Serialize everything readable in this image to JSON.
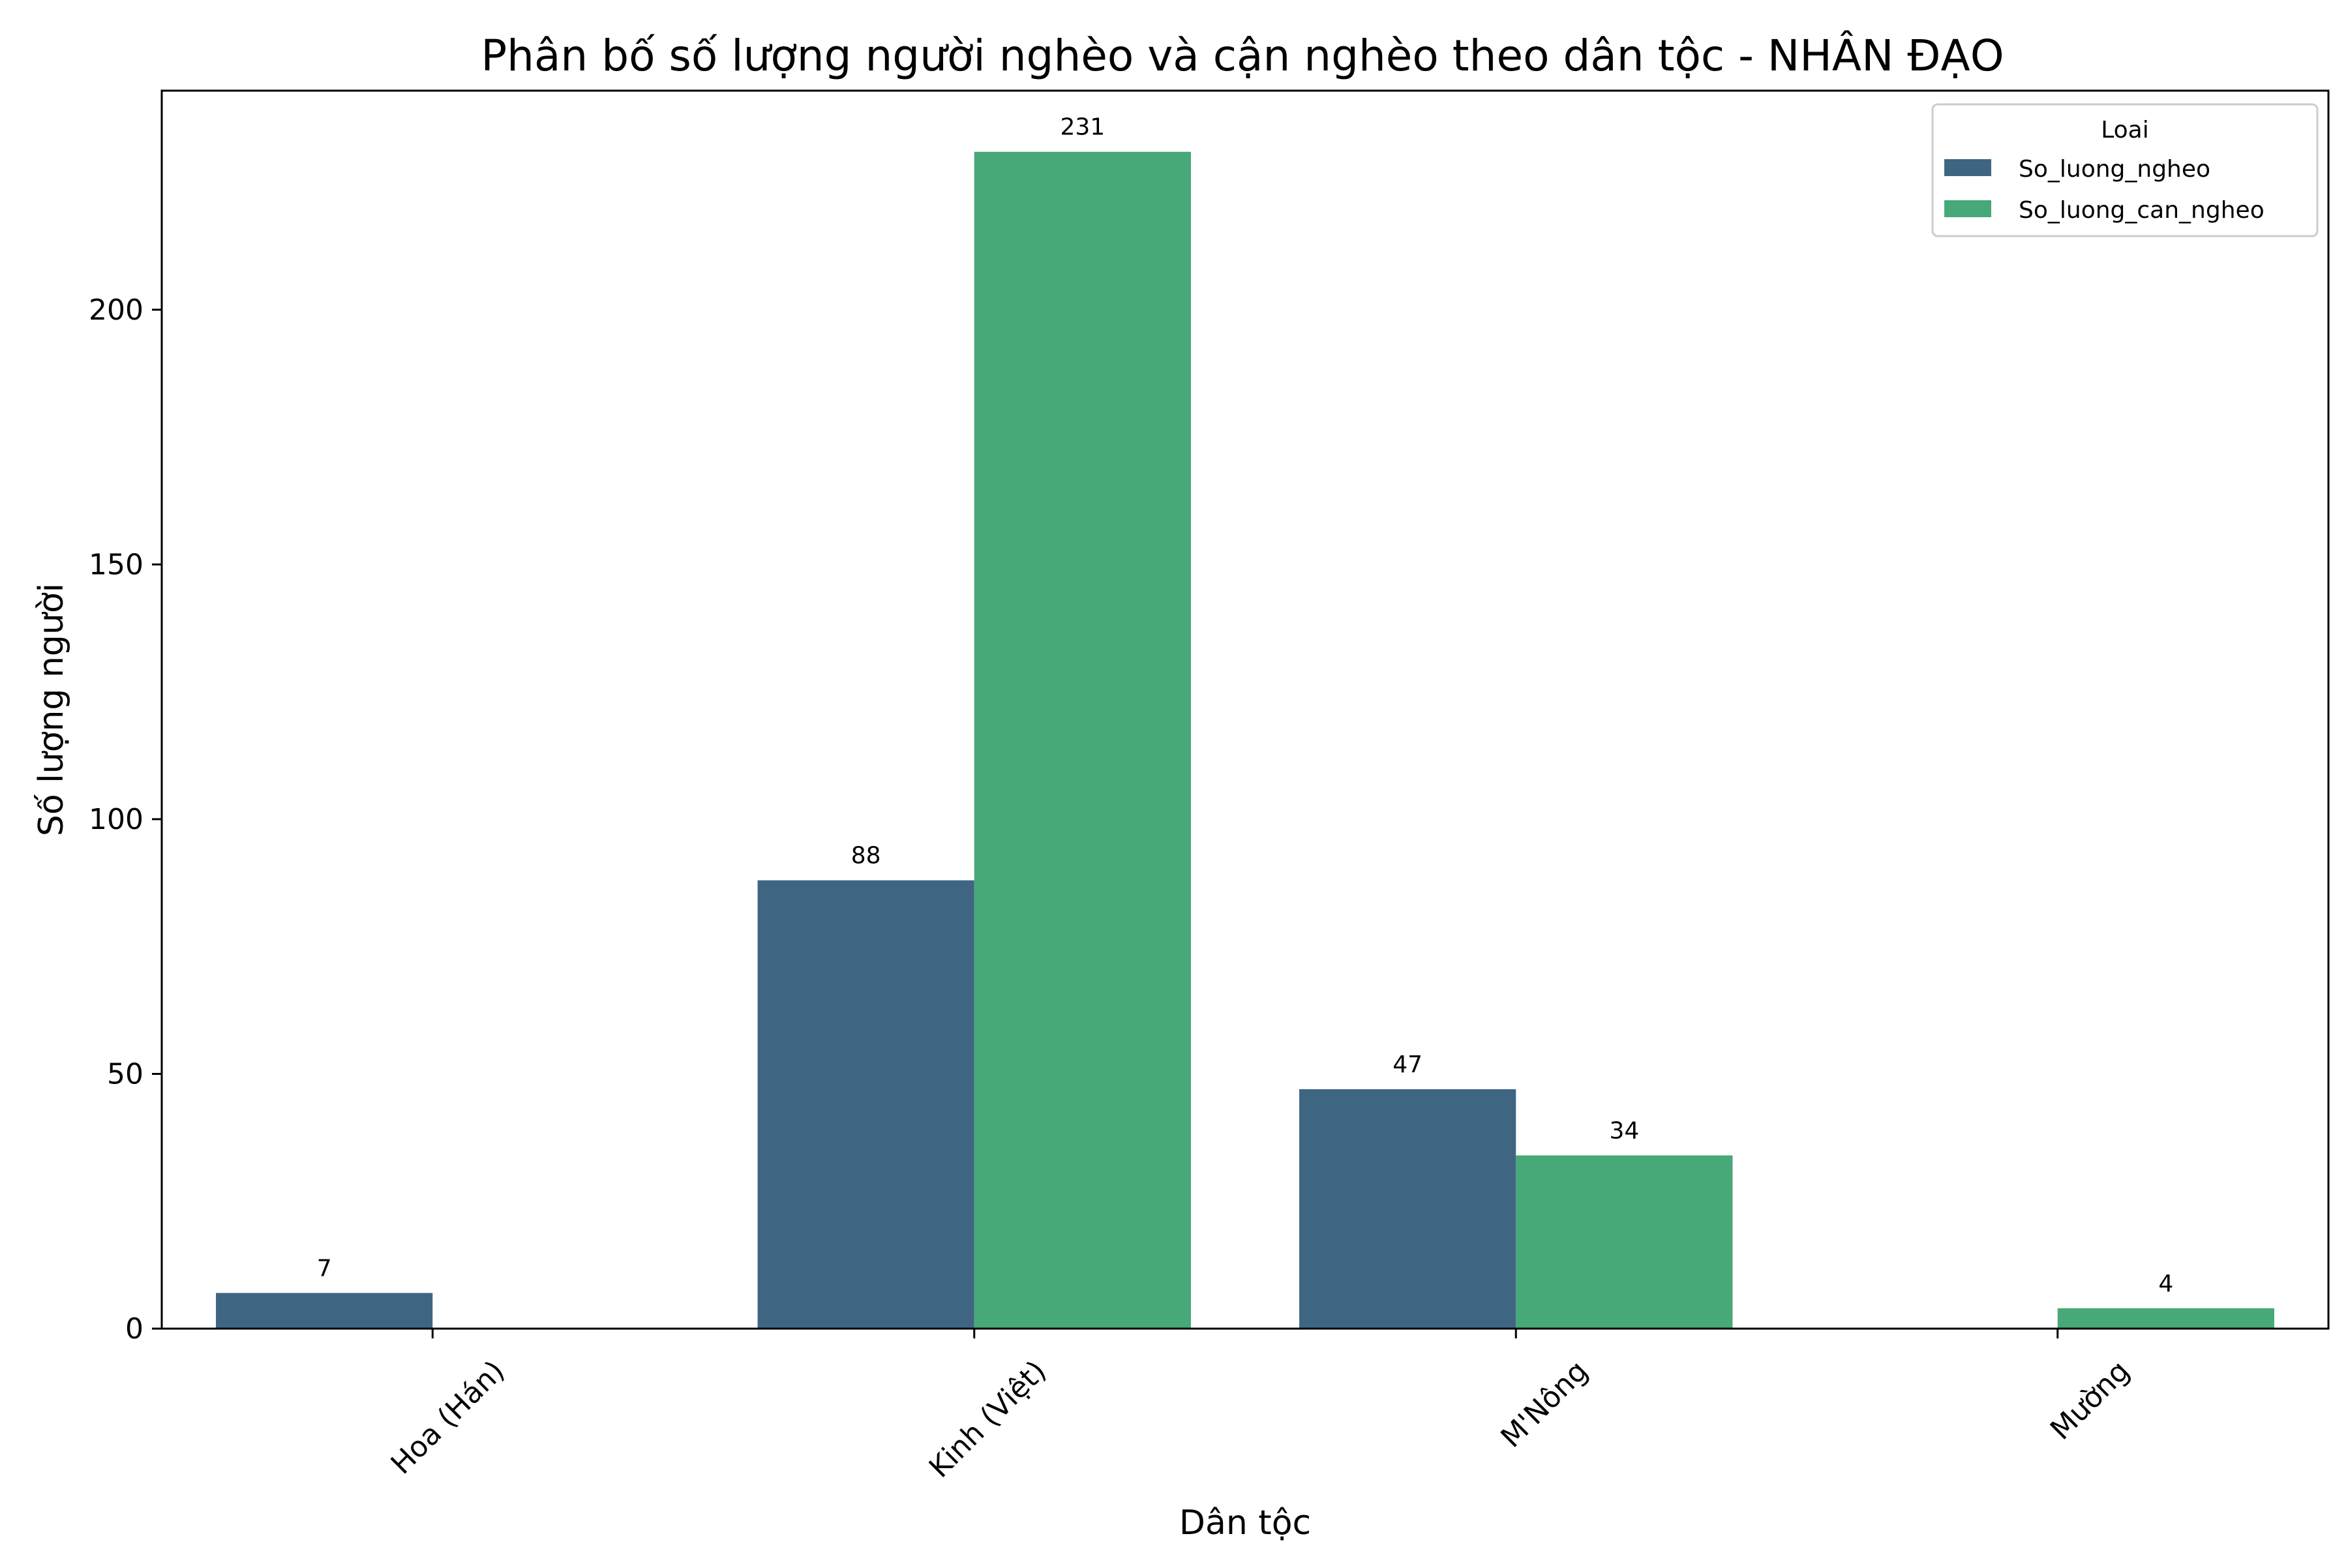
{
  "chart_data": {
    "type": "bar",
    "title": "Phân bố số lượng người nghèo và cận nghèo theo dân tộc - NHÂN ĐẠO",
    "xlabel": "Dân tộc",
    "ylabel": "Số lượng người",
    "categories": [
      "Hoa (Hán)",
      "Kinh (Việt)",
      "M'Nông",
      "Mường"
    ],
    "series": [
      {
        "name": "So_luong_ngheo",
        "color": "#3e6683",
        "values": [
          7,
          88,
          47,
          null
        ]
      },
      {
        "name": "So_luong_can_ngheo",
        "color": "#47a878",
        "values": [
          null,
          231,
          34,
          4
        ]
      }
    ],
    "ylim": [
      0,
      243
    ],
    "yticks": [
      0,
      50,
      100,
      150,
      200
    ],
    "legend": {
      "title": "Loai",
      "position": "top-right"
    },
    "grid": false
  }
}
